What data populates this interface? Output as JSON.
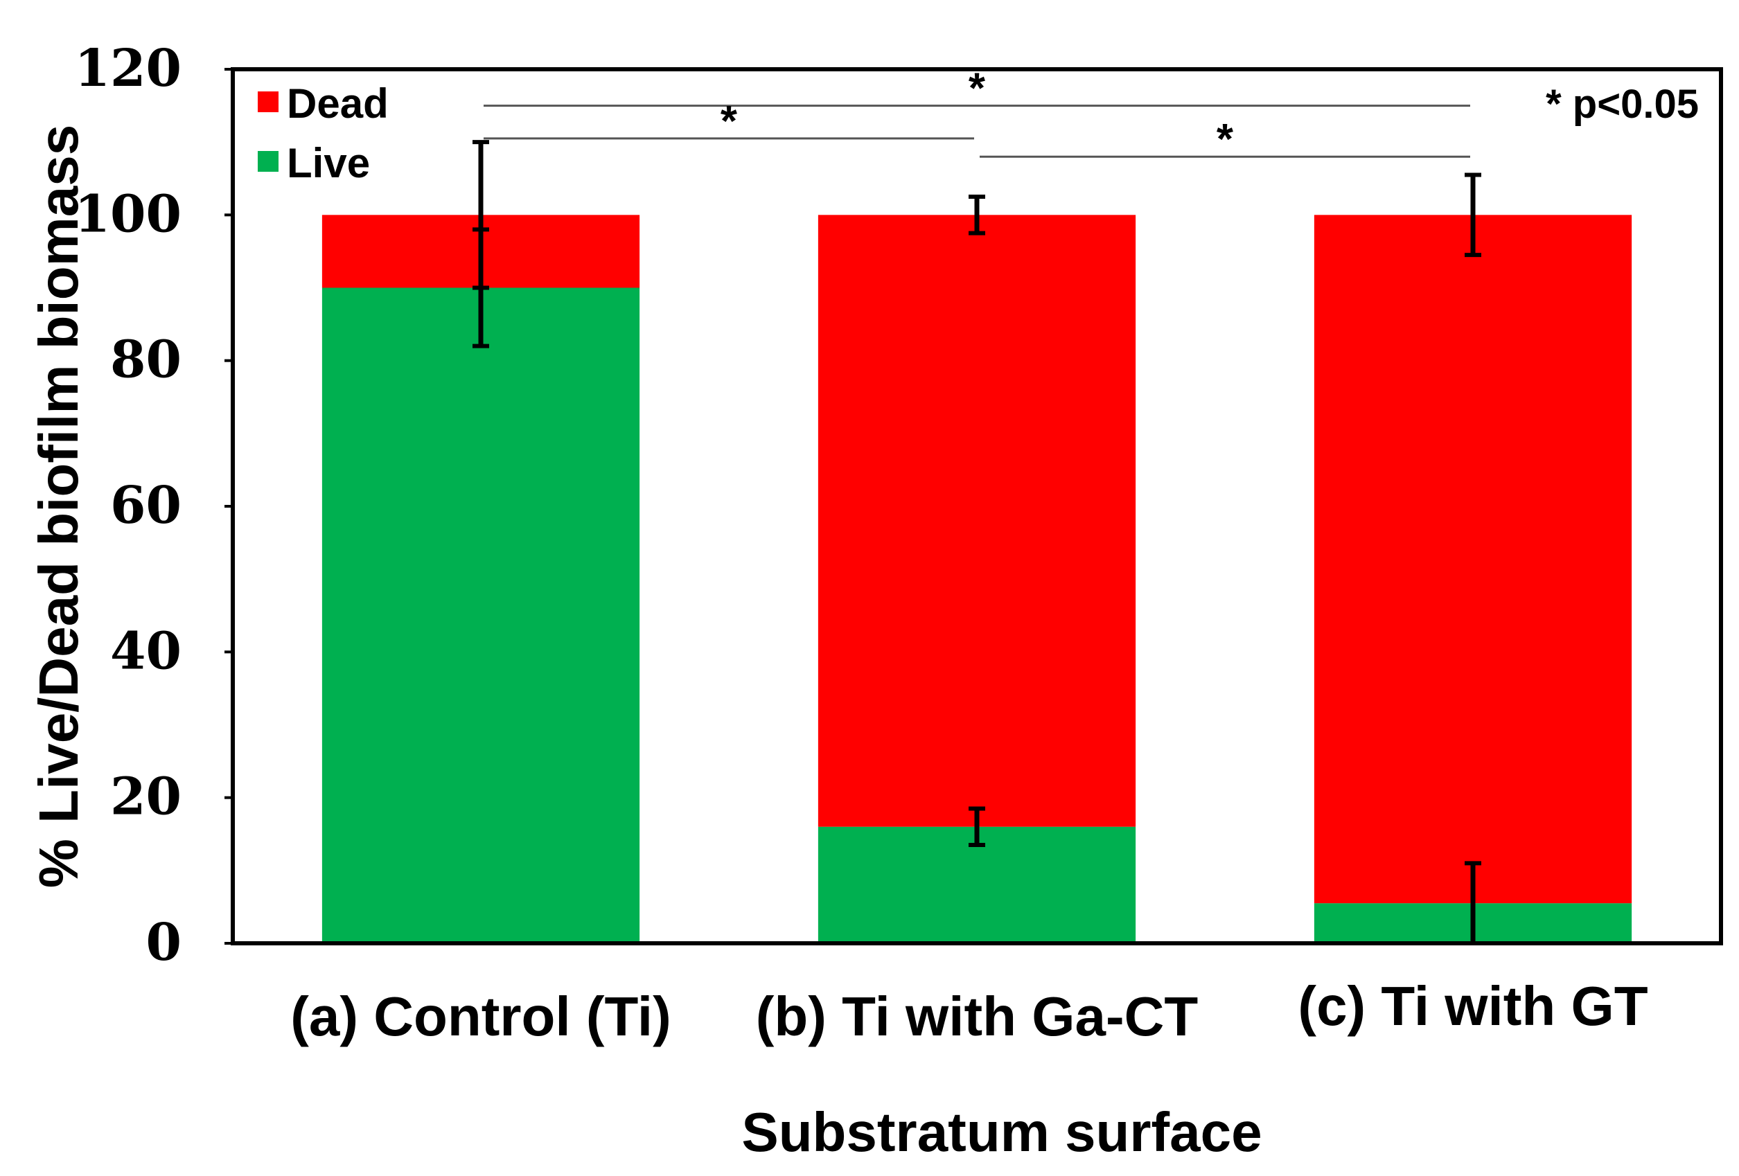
{
  "chart_data": {
    "type": "bar",
    "stacked": true,
    "title": "",
    "xlabel": "Substratum surface",
    "ylabel": "% Live/Dead biofilm biomass",
    "ylim": [
      0,
      120
    ],
    "yticks": [
      0,
      20,
      40,
      60,
      80,
      100,
      120
    ],
    "ytick_labels": [
      "0",
      "20",
      "40",
      "60",
      "80",
      "100",
      "120"
    ],
    "categories": [
      "(a) Control (Ti)",
      "(b) Ti with Ga-CT",
      "(c) Ti with GT"
    ],
    "series": [
      {
        "name": "Live",
        "color": "#00b050",
        "values": [
          90,
          16,
          5.5
        ],
        "errors": [
          8,
          2.5,
          5.5
        ]
      },
      {
        "name": "Dead",
        "color": "#ff0000",
        "values": [
          10,
          84,
          94.5
        ],
        "errors": [
          10,
          2.5,
          5.5
        ]
      }
    ],
    "legend": {
      "position": "top-left",
      "entries": [
        "Dead",
        "Live"
      ]
    },
    "significance": [
      {
        "from": 0,
        "to": 2,
        "y": 115,
        "label": "*"
      },
      {
        "from": 0,
        "to": 1,
        "y": 110.5,
        "label": "*"
      },
      {
        "from": 1,
        "to": 2,
        "y": 108,
        "label": "*"
      }
    ],
    "annotation": "* p<0.05"
  }
}
